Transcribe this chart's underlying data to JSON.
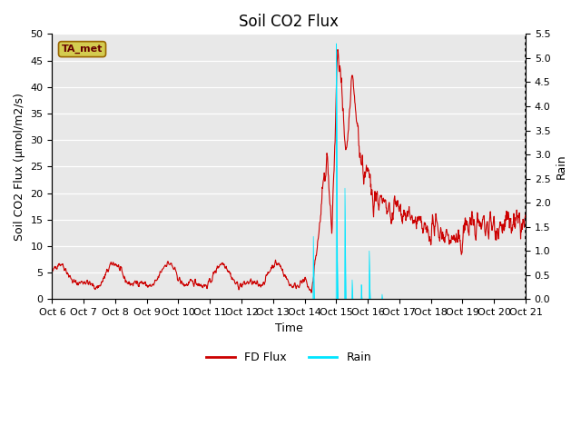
{
  "title": "Soil CO2 Flux",
  "ylabel_left": "Soil CO2 Flux (μmol/m2/s)",
  "ylabel_right": "Rain",
  "xlabel": "Time",
  "ylim_left": [
    0,
    50
  ],
  "ylim_right": [
    0,
    5.5
  ],
  "yticks_left": [
    0,
    5,
    10,
    15,
    20,
    25,
    30,
    35,
    40,
    45,
    50
  ],
  "yticks_right": [
    0.0,
    0.5,
    1.0,
    1.5,
    2.0,
    2.5,
    3.0,
    3.5,
    4.0,
    4.5,
    5.0,
    5.5
  ],
  "xtick_labels": [
    "Oct 6",
    "Oct 7",
    "Oct 8",
    "Oct 9",
    "Oct 10",
    "Oct 11",
    "Oct 12",
    "Oct 13",
    "Oct 14",
    "Oct 15",
    "Oct 16",
    "Oct 17",
    "Oct 18",
    "Oct 19",
    "Oct 20",
    "Oct 21"
  ],
  "fd_flux_color": "#cc0000",
  "rain_color": "#00e5ff",
  "background_color": "#e8e8e8",
  "annotation_text": "TA_met",
  "annotation_bg": "#d4cc50",
  "annotation_border": "#996600",
  "legend_entries": [
    "FD Flux",
    "Rain"
  ],
  "title_fontsize": 12,
  "axis_label_fontsize": 9,
  "tick_fontsize": 8
}
